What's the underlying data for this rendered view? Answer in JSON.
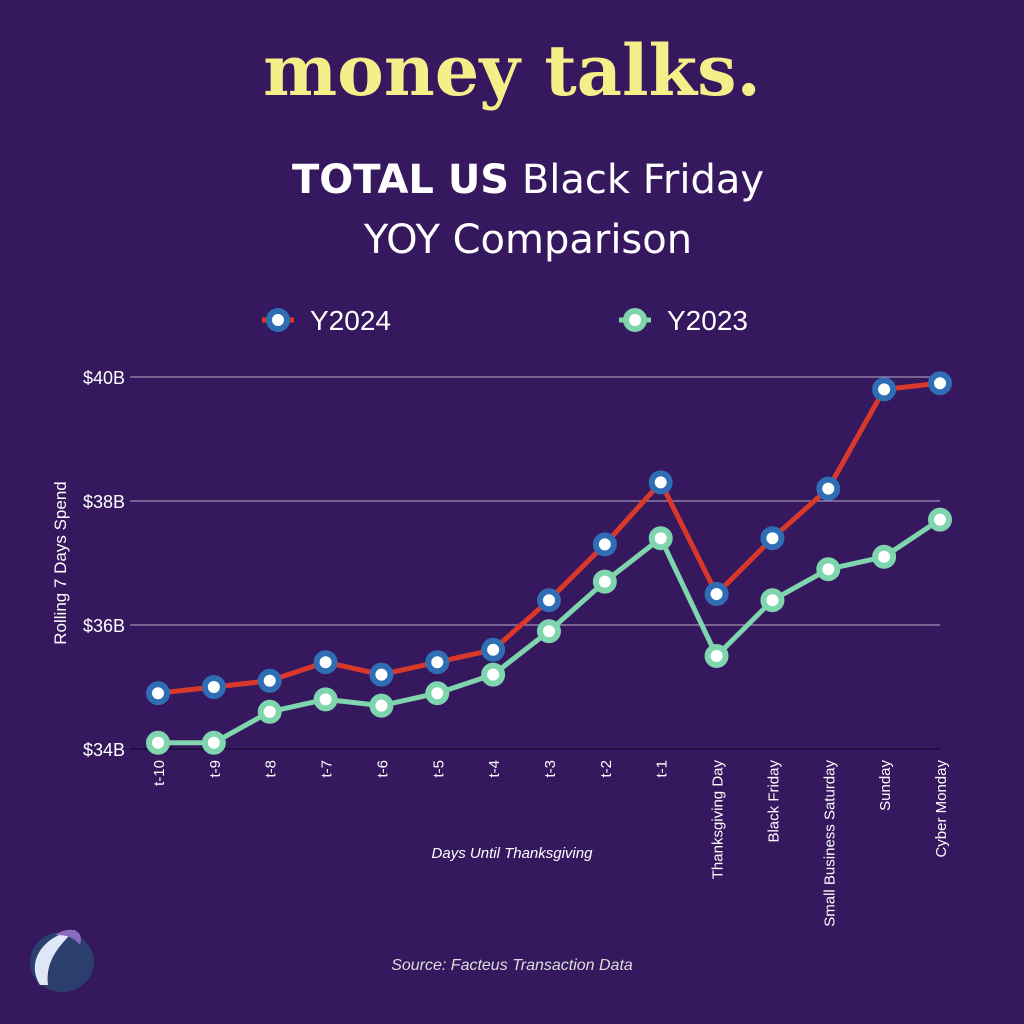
{
  "chart_data": {
    "type": "line",
    "brand": "money talks.",
    "title_parts": [
      "TOTAL US",
      "Black Friday",
      "YOY Comparison"
    ],
    "y_label": "Rolling 7 Days Spend",
    "x_label": "Days Until Thanksgiving",
    "source": "Source:  Facteus Transaction Data",
    "categories": [
      "t-10",
      "t-9",
      "t-8",
      "t-7",
      "t-6",
      "t-5",
      "t-4",
      "t-3",
      "t-2",
      "t-1",
      "Thanksgiving Day",
      "Black Friday",
      "Small Business Saturday",
      "Sunday",
      "Cyber Monday"
    ],
    "series": [
      {
        "name": "Y2024",
        "color": "#d8392b",
        "marker_color": "#2f6db5",
        "values": [
          34.9,
          35.0,
          35.1,
          35.4,
          35.2,
          35.4,
          35.6,
          36.4,
          37.3,
          38.3,
          36.5,
          37.4,
          38.2,
          39.8,
          39.9
        ]
      },
      {
        "name": "Y2023",
        "color": "#7fd6ae",
        "marker_color": "#7fd6ae",
        "values": [
          34.1,
          34.1,
          34.6,
          34.8,
          34.7,
          34.9,
          35.2,
          35.9,
          36.7,
          37.4,
          35.5,
          36.4,
          36.9,
          37.1,
          37.7
        ]
      }
    ],
    "ylim": [
      34,
      40
    ],
    "yticks": [
      {
        "value": 34,
        "label": "$34B"
      },
      {
        "value": 36,
        "label": "$36B"
      },
      {
        "value": 38,
        "label": "$38B"
      },
      {
        "value": 40,
        "label": "$40B"
      }
    ],
    "grid": true
  }
}
